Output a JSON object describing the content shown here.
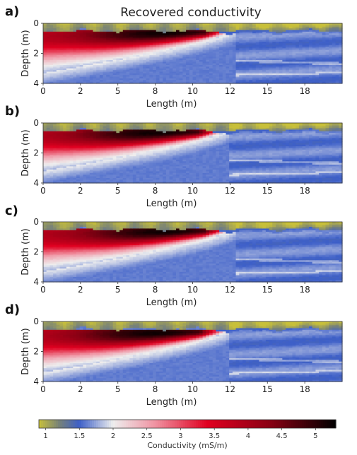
{
  "figure_title": "Recovered conductivity",
  "colors": {
    "low": "#c8c03a",
    "mid_low": "#3d5fc8",
    "mid": "#eeeeee",
    "high": "#e00020",
    "max": "#000000"
  },
  "chart_data": [
    {
      "type": "heatmap",
      "panel_label": "a)",
      "xlabel": "Length (m)",
      "ylabel": "Depth (m)",
      "x_ticks": [
        "0",
        "2",
        "5",
        "8",
        "10",
        "12",
        "15",
        "18"
      ],
      "x_tick_values": [
        0,
        2.5,
        5,
        7.5,
        10,
        12.5,
        15,
        17.5
      ],
      "y_ticks": [
        "0",
        "2",
        "4"
      ],
      "y_tick_values": [
        0,
        2,
        4
      ],
      "xlim": [
        0,
        20
      ],
      "ylim": [
        4,
        0
      ],
      "anomaly": {
        "peak_conductivity": 5.2,
        "peak_x": 8,
        "peak_depth": 0.6,
        "right_end_x": 12.8,
        "top_depth": 0.5,
        "bottom_depth_at_left": 3.3
      },
      "surface_layer": {
        "conductivity": 1.0,
        "thickness_m": 0.5
      },
      "background_conductivity": 1.6
    },
    {
      "type": "heatmap",
      "panel_label": "b)",
      "xlabel": "Length (m)",
      "ylabel": "Depth (m)",
      "x_ticks": [
        "0",
        "2",
        "5",
        "8",
        "10",
        "12",
        "15",
        "18"
      ],
      "x_tick_values": [
        0,
        2.5,
        5,
        7.5,
        10,
        12.5,
        15,
        17.5
      ],
      "y_ticks": [
        "0",
        "2",
        "4"
      ],
      "y_tick_values": [
        0,
        2,
        4
      ],
      "xlim": [
        0,
        20
      ],
      "ylim": [
        4,
        0
      ],
      "anomaly": {
        "peak_conductivity": 5.2,
        "peak_x": 7.5,
        "peak_depth": 0.7,
        "right_end_x": 12.4,
        "top_depth": 0.5,
        "bottom_depth_at_left": 3.2
      },
      "surface_layer": {
        "conductivity": 1.0,
        "thickness_m": 0.5
      },
      "background_conductivity": 1.6
    },
    {
      "type": "heatmap",
      "panel_label": "c)",
      "xlabel": "Length (m)",
      "ylabel": "Depth (m)",
      "x_ticks": [
        "0",
        "2",
        "5",
        "8",
        "10",
        "12",
        "15",
        "18"
      ],
      "x_tick_values": [
        0,
        2.5,
        5,
        7.5,
        10,
        12.5,
        15,
        17.5
      ],
      "y_ticks": [
        "0",
        "2",
        "4"
      ],
      "y_tick_values": [
        0,
        2,
        4
      ],
      "xlim": [
        0,
        20
      ],
      "ylim": [
        4,
        0
      ],
      "anomaly": {
        "peak_conductivity": 5.2,
        "peak_x": 8,
        "peak_depth": 0.7,
        "right_end_x": 12.8,
        "top_depth": 0.5,
        "bottom_depth_at_left": 3.3
      },
      "surface_layer": {
        "conductivity": 1.0,
        "thickness_m": 0.5
      },
      "background_conductivity": 1.6
    },
    {
      "type": "heatmap",
      "panel_label": "d)",
      "xlabel": "Length (m)",
      "ylabel": "Depth (m)",
      "x_ticks": [
        "0",
        "2",
        "5",
        "8",
        "10",
        "12",
        "15",
        "18"
      ],
      "x_tick_values": [
        0,
        2.5,
        5,
        7.5,
        10,
        12.5,
        15,
        17.5
      ],
      "y_ticks": [
        "0",
        "2",
        "4"
      ],
      "y_tick_values": [
        0,
        2,
        4
      ],
      "xlim": [
        0,
        20
      ],
      "ylim": [
        4,
        0
      ],
      "anomaly": {
        "peak_conductivity": 5.2,
        "peak_x": 7.5,
        "peak_depth": 1.0,
        "right_end_x": 12.5,
        "top_depth": 0.6,
        "bottom_depth_at_left": 3.4
      },
      "surface_layer": {
        "conductivity": 1.0,
        "thickness_m": 0.5
      },
      "background_conductivity": 1.6
    }
  ],
  "colorbar": {
    "label": "Conductivity (mS/m)",
    "ticks": [
      "1",
      "1.5",
      "2",
      "2.5",
      "3",
      "3.5",
      "4",
      "4.5",
      "5"
    ],
    "tick_values": [
      1,
      1.5,
      2,
      2.5,
      3,
      3.5,
      4,
      4.5,
      5
    ],
    "range": [
      0.9,
      5.3
    ]
  }
}
